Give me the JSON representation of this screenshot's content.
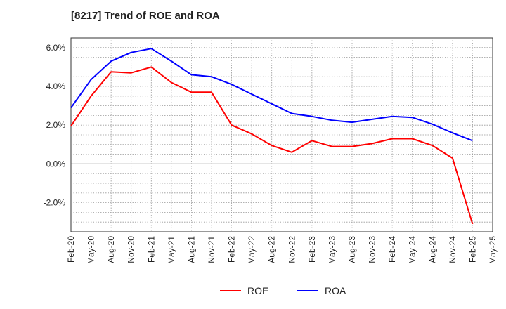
{
  "chart_data": {
    "type": "line",
    "title": "[8217]  Trend of ROE and ROA",
    "xlabel": "",
    "ylabel": "",
    "ylim": [
      -3.5,
      6.5
    ],
    "y_ticks": [
      "6.0%",
      "4.0%",
      "2.0%",
      "0.0%",
      "-2.0%"
    ],
    "y_tick_values": [
      6,
      4,
      2,
      0,
      -2
    ],
    "categories": [
      "Feb-20",
      "May-20",
      "Aug-20",
      "Nov-20",
      "Feb-21",
      "May-21",
      "Aug-21",
      "Nov-21",
      "Feb-22",
      "May-22",
      "Aug-22",
      "Nov-22",
      "Feb-23",
      "May-23",
      "Aug-23",
      "Nov-23",
      "Feb-24",
      "May-24",
      "Aug-24",
      "Nov-24",
      "Feb-25",
      "May-25"
    ],
    "grid": true,
    "legend_position": "bottom-center",
    "series": [
      {
        "name": "ROE",
        "color": "#ff0000",
        "values": [
          1.95,
          3.5,
          4.75,
          4.7,
          5.0,
          4.2,
          3.7,
          3.7,
          2.0,
          1.55,
          0.95,
          0.6,
          1.2,
          0.9,
          0.9,
          1.05,
          1.3,
          1.3,
          0.95,
          0.3,
          -3.1,
          null
        ]
      },
      {
        "name": "ROA",
        "color": "#0000ff",
        "values": [
          2.9,
          4.35,
          5.3,
          5.75,
          5.95,
          5.3,
          4.6,
          4.5,
          4.1,
          3.6,
          3.1,
          2.6,
          2.45,
          2.25,
          2.15,
          2.3,
          2.45,
          2.4,
          2.05,
          1.6,
          1.2,
          null
        ]
      }
    ]
  }
}
